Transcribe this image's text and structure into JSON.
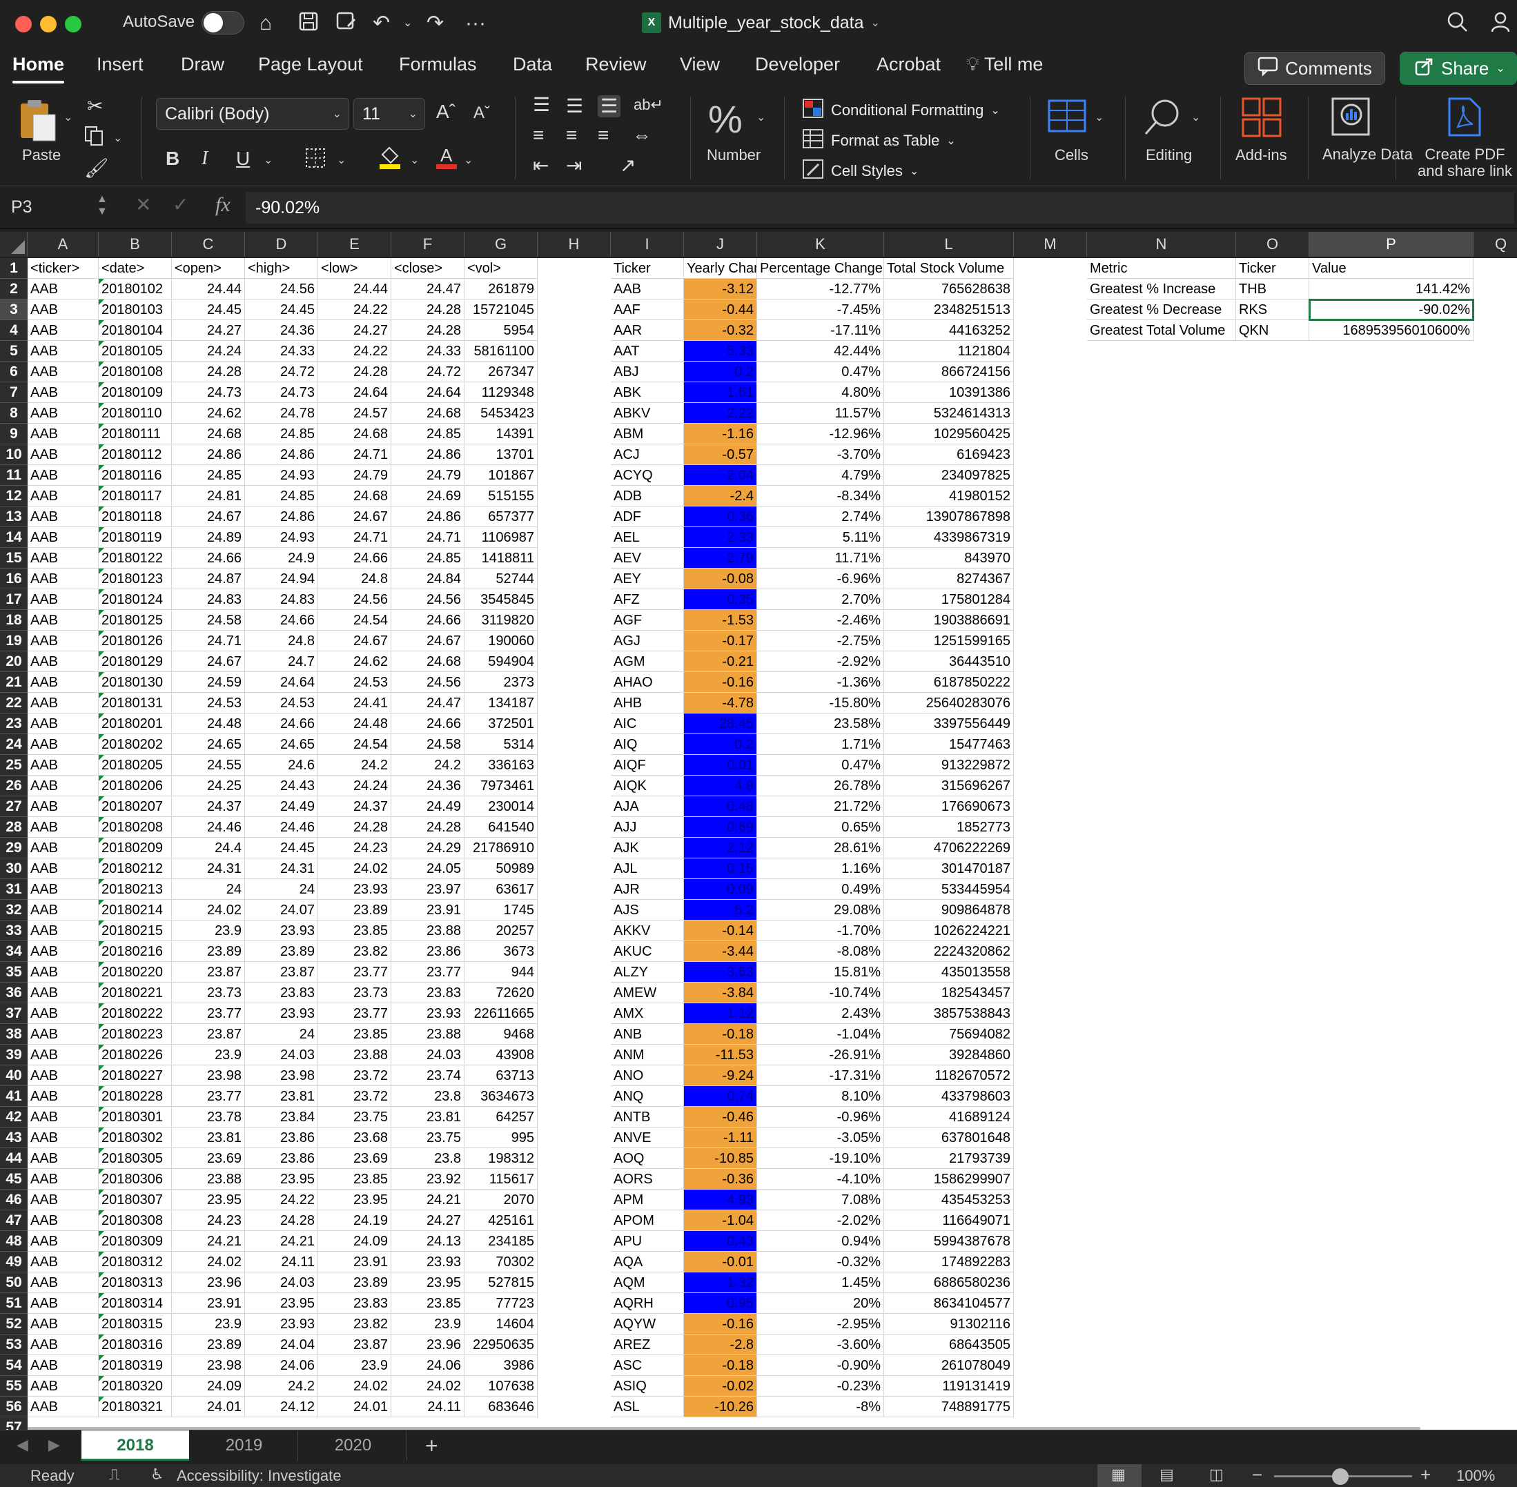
{
  "titlebar": {
    "autosave_label": "AutoSave",
    "doc_title": "Multiple_year_stock_data",
    "colors": {
      "close": "#ff5f57",
      "minimize": "#febc2e",
      "maximize": "#28c840"
    }
  },
  "tabs": [
    "Home",
    "Insert",
    "Draw",
    "Page Layout",
    "Formulas",
    "Data",
    "Review",
    "View",
    "Developer",
    "Acrobat"
  ],
  "tellme": "Tell me",
  "comments_label": "Comments",
  "share_label": "Share",
  "ribbon": {
    "paste": "Paste",
    "font_name": "Calibri (Body)",
    "font_size": "11",
    "bold": "B",
    "italic": "I",
    "underline": "U",
    "number": "Number",
    "conditional_formatting": "Conditional Formatting",
    "format_as_table": "Format as Table",
    "cell_styles": "Cell Styles",
    "cells": "Cells",
    "editing": "Editing",
    "addins": "Add-ins",
    "analyze_data": "Analyze Data",
    "create_pdf_1": "Create PDF",
    "create_pdf_2": "and share link"
  },
  "formula_bar": {
    "name_box": "P3",
    "fx": "fx",
    "value": "-90.02%"
  },
  "columns": [
    "A",
    "B",
    "C",
    "D",
    "E",
    "F",
    "G",
    "H",
    "I",
    "J",
    "K",
    "L",
    "M",
    "N",
    "O",
    "P",
    "Q"
  ],
  "selected_column": "P",
  "headers": {
    "A": "<ticker>",
    "B": "<date>",
    "C": "<open>",
    "D": "<high>",
    "E": "<low>",
    "F": "<close>",
    "G": "<vol>",
    "I": "Ticker",
    "J": "Yearly Change",
    "K": "Percentage Change",
    "L": "Total Stock Volume",
    "N": "Metric",
    "O": "Ticker",
    "P": "Value"
  },
  "summary": [
    {
      "metric": "Greatest % Increase",
      "ticker": "THB",
      "value": "141.42%"
    },
    {
      "metric": "Greatest % Decrease",
      "ticker": "RKS",
      "value": "-90.02%"
    },
    {
      "metric": "Greatest Total Volume",
      "ticker": "QKN",
      "value": "168953956010600%"
    }
  ],
  "raw_rows": [
    [
      "AAB",
      "20180102",
      "24.44",
      "24.56",
      "24.44",
      "24.47",
      "261879"
    ],
    [
      "AAB",
      "20180103",
      "24.45",
      "24.45",
      "24.22",
      "24.28",
      "15721045"
    ],
    [
      "AAB",
      "20180104",
      "24.27",
      "24.36",
      "24.27",
      "24.28",
      "5954"
    ],
    [
      "AAB",
      "20180105",
      "24.24",
      "24.33",
      "24.22",
      "24.33",
      "58161100"
    ],
    [
      "AAB",
      "20180108",
      "24.28",
      "24.72",
      "24.28",
      "24.72",
      "267347"
    ],
    [
      "AAB",
      "20180109",
      "24.73",
      "24.73",
      "24.64",
      "24.64",
      "1129348"
    ],
    [
      "AAB",
      "20180110",
      "24.62",
      "24.78",
      "24.57",
      "24.68",
      "5453423"
    ],
    [
      "AAB",
      "20180111",
      "24.68",
      "24.85",
      "24.68",
      "24.85",
      "14391"
    ],
    [
      "AAB",
      "20180112",
      "24.86",
      "24.86",
      "24.71",
      "24.86",
      "13701"
    ],
    [
      "AAB",
      "20180116",
      "24.85",
      "24.93",
      "24.79",
      "24.79",
      "101867"
    ],
    [
      "AAB",
      "20180117",
      "24.81",
      "24.85",
      "24.68",
      "24.69",
      "515155"
    ],
    [
      "AAB",
      "20180118",
      "24.67",
      "24.86",
      "24.67",
      "24.86",
      "657377"
    ],
    [
      "AAB",
      "20180119",
      "24.89",
      "24.93",
      "24.71",
      "24.71",
      "1106987"
    ],
    [
      "AAB",
      "20180122",
      "24.66",
      "24.9",
      "24.66",
      "24.85",
      "1418811"
    ],
    [
      "AAB",
      "20180123",
      "24.87",
      "24.94",
      "24.8",
      "24.84",
      "52744"
    ],
    [
      "AAB",
      "20180124",
      "24.83",
      "24.83",
      "24.56",
      "24.56",
      "3545845"
    ],
    [
      "AAB",
      "20180125",
      "24.58",
      "24.66",
      "24.54",
      "24.66",
      "3119820"
    ],
    [
      "AAB",
      "20180126",
      "24.71",
      "24.8",
      "24.67",
      "24.67",
      "190060"
    ],
    [
      "AAB",
      "20180129",
      "24.67",
      "24.7",
      "24.62",
      "24.68",
      "594904"
    ],
    [
      "AAB",
      "20180130",
      "24.59",
      "24.64",
      "24.53",
      "24.56",
      "2373"
    ],
    [
      "AAB",
      "20180131",
      "24.53",
      "24.53",
      "24.41",
      "24.47",
      "134187"
    ],
    [
      "AAB",
      "20180201",
      "24.48",
      "24.66",
      "24.48",
      "24.66",
      "372501"
    ],
    [
      "AAB",
      "20180202",
      "24.65",
      "24.65",
      "24.54",
      "24.58",
      "5314"
    ],
    [
      "AAB",
      "20180205",
      "24.55",
      "24.6",
      "24.2",
      "24.2",
      "336163"
    ],
    [
      "AAB",
      "20180206",
      "24.25",
      "24.43",
      "24.24",
      "24.36",
      "7973461"
    ],
    [
      "AAB",
      "20180207",
      "24.37",
      "24.49",
      "24.37",
      "24.49",
      "230014"
    ],
    [
      "AAB",
      "20180208",
      "24.46",
      "24.46",
      "24.28",
      "24.28",
      "641540"
    ],
    [
      "AAB",
      "20180209",
      "24.4",
      "24.45",
      "24.23",
      "24.29",
      "21786910"
    ],
    [
      "AAB",
      "20180212",
      "24.31",
      "24.31",
      "24.02",
      "24.05",
      "50989"
    ],
    [
      "AAB",
      "20180213",
      "24",
      "24",
      "23.93",
      "23.97",
      "63617"
    ],
    [
      "AAB",
      "20180214",
      "24.02",
      "24.07",
      "23.89",
      "23.91",
      "1745"
    ],
    [
      "AAB",
      "20180215",
      "23.9",
      "23.93",
      "23.85",
      "23.88",
      "20257"
    ],
    [
      "AAB",
      "20180216",
      "23.89",
      "23.89",
      "23.82",
      "23.86",
      "3673"
    ],
    [
      "AAB",
      "20180220",
      "23.87",
      "23.87",
      "23.77",
      "23.77",
      "944"
    ],
    [
      "AAB",
      "20180221",
      "23.73",
      "23.83",
      "23.73",
      "23.83",
      "72620"
    ],
    [
      "AAB",
      "20180222",
      "23.77",
      "23.93",
      "23.77",
      "23.93",
      "22611665"
    ],
    [
      "AAB",
      "20180223",
      "23.87",
      "24",
      "23.85",
      "23.88",
      "9468"
    ],
    [
      "AAB",
      "20180226",
      "23.9",
      "24.03",
      "23.88",
      "24.03",
      "43908"
    ],
    [
      "AAB",
      "20180227",
      "23.98",
      "23.98",
      "23.72",
      "23.74",
      "63713"
    ],
    [
      "AAB",
      "20180228",
      "23.77",
      "23.81",
      "23.72",
      "23.8",
      "3634673"
    ],
    [
      "AAB",
      "20180301",
      "23.78",
      "23.84",
      "23.75",
      "23.81",
      "64257"
    ],
    [
      "AAB",
      "20180302",
      "23.81",
      "23.86",
      "23.68",
      "23.75",
      "995"
    ],
    [
      "AAB",
      "20180305",
      "23.69",
      "23.86",
      "23.69",
      "23.8",
      "198312"
    ],
    [
      "AAB",
      "20180306",
      "23.88",
      "23.95",
      "23.85",
      "23.92",
      "115617"
    ],
    [
      "AAB",
      "20180307",
      "23.95",
      "24.22",
      "23.95",
      "24.21",
      "2070"
    ],
    [
      "AAB",
      "20180308",
      "24.23",
      "24.28",
      "24.19",
      "24.27",
      "425161"
    ],
    [
      "AAB",
      "20180309",
      "24.21",
      "24.21",
      "24.09",
      "24.13",
      "234185"
    ],
    [
      "AAB",
      "20180312",
      "24.02",
      "24.11",
      "23.91",
      "23.93",
      "70302"
    ],
    [
      "AAB",
      "20180313",
      "23.96",
      "24.03",
      "23.89",
      "23.95",
      "527815"
    ],
    [
      "AAB",
      "20180314",
      "23.91",
      "23.95",
      "23.83",
      "23.85",
      "77723"
    ],
    [
      "AAB",
      "20180315",
      "23.9",
      "23.93",
      "23.82",
      "23.9",
      "14604"
    ],
    [
      "AAB",
      "20180316",
      "23.89",
      "24.04",
      "23.87",
      "23.96",
      "22950635"
    ],
    [
      "AAB",
      "20180319",
      "23.98",
      "24.06",
      "23.9",
      "24.06",
      "3986"
    ],
    [
      "AAB",
      "20180320",
      "24.09",
      "24.2",
      "24.02",
      "24.02",
      "107638"
    ],
    [
      "AAB",
      "20180321",
      "24.01",
      "24.12",
      "24.01",
      "24.11",
      "683646"
    ]
  ],
  "analysis_rows": [
    [
      "AAB",
      "-3.12",
      "-12.77%",
      "765628638"
    ],
    [
      "AAF",
      "-0.44",
      "-7.45%",
      "2348251513"
    ],
    [
      "AAR",
      "-0.32",
      "-17.11%",
      "44163252"
    ],
    [
      "AAT",
      "5.33",
      "42.44%",
      "1121804"
    ],
    [
      "ABJ",
      "0.2",
      "0.47%",
      "866724156"
    ],
    [
      "ABK",
      "1.61",
      "4.80%",
      "10391386"
    ],
    [
      "ABKV",
      "2.22",
      "11.57%",
      "5324614313"
    ],
    [
      "ABM",
      "-1.16",
      "-12.96%",
      "1029560425"
    ],
    [
      "ACJ",
      "-0.57",
      "-3.70%",
      "6169423"
    ],
    [
      "ACYQ",
      "2.04",
      "4.79%",
      "234097825"
    ],
    [
      "ADB",
      "-2.4",
      "-8.34%",
      "41980152"
    ],
    [
      "ADF",
      "0.36",
      "2.74%",
      "13907867898"
    ],
    [
      "AEL",
      "2.33",
      "5.11%",
      "4339867319"
    ],
    [
      "AEV",
      "2.79",
      "11.71%",
      "843970"
    ],
    [
      "AEY",
      "-0.08",
      "-6.96%",
      "8274367"
    ],
    [
      "AFZ",
      "0.35",
      "2.70%",
      "175801284"
    ],
    [
      "AGF",
      "-1.53",
      "-2.46%",
      "1903886691"
    ],
    [
      "AGJ",
      "-0.17",
      "-2.75%",
      "1251599165"
    ],
    [
      "AGM",
      "-0.21",
      "-2.92%",
      "36443510"
    ],
    [
      "AHAO",
      "-0.16",
      "-1.36%",
      "6187850222"
    ],
    [
      "AHB",
      "-4.78",
      "-15.80%",
      "25640283076"
    ],
    [
      "AIC",
      "28.45",
      "23.58%",
      "3397556449"
    ],
    [
      "AIQ",
      "0.2",
      "1.71%",
      "15477463"
    ],
    [
      "AIQF",
      "0.01",
      "0.47%",
      "913229872"
    ],
    [
      "AIQK",
      "4.9",
      "26.78%",
      "315696267"
    ],
    [
      "AJA",
      "0.48",
      "21.72%",
      "176690673"
    ],
    [
      "AJJ",
      "0.69",
      "0.65%",
      "1852773"
    ],
    [
      "AJK",
      "2.12",
      "28.61%",
      "4706222269"
    ],
    [
      "AJL",
      "0.15",
      "1.16%",
      "301470187"
    ],
    [
      "AJR",
      "0.09",
      "0.49%",
      "533445954"
    ],
    [
      "AJS",
      "5.2",
      "29.08%",
      "909864878"
    ],
    [
      "AKKV",
      "-0.14",
      "-1.70%",
      "1026224221"
    ],
    [
      "AKUC",
      "-3.44",
      "-8.08%",
      "2224320862"
    ],
    [
      "ALZY",
      "3.63",
      "15.81%",
      "435013558"
    ],
    [
      "AMEW",
      "-3.84",
      "-10.74%",
      "182543457"
    ],
    [
      "AMX",
      "1.12",
      "2.43%",
      "3857538843"
    ],
    [
      "ANB",
      "-0.18",
      "-1.04%",
      "75694082"
    ],
    [
      "ANM",
      "-11.53",
      "-26.91%",
      "39284860"
    ],
    [
      "ANO",
      "-9.24",
      "-17.31%",
      "1182670572"
    ],
    [
      "ANQ",
      "0.74",
      "8.10%",
      "433798603"
    ],
    [
      "ANTB",
      "-0.46",
      "-0.96%",
      "41689124"
    ],
    [
      "ANVE",
      "-1.11",
      "-3.05%",
      "637801648"
    ],
    [
      "AOQ",
      "-10.85",
      "-19.10%",
      "21793739"
    ],
    [
      "AORS",
      "-0.36",
      "-4.10%",
      "1586299907"
    ],
    [
      "APM",
      "4.93",
      "7.08%",
      "435453253"
    ],
    [
      "APOM",
      "-1.04",
      "-2.02%",
      "116649071"
    ],
    [
      "APU",
      "0.43",
      "0.94%",
      "5994387678"
    ],
    [
      "AQA",
      "-0.01",
      "-0.32%",
      "174892283"
    ],
    [
      "AQM",
      "1.32",
      "1.45%",
      "6886580236"
    ],
    [
      "AQRH",
      "0.95",
      "20%",
      "8634104577"
    ],
    [
      "AQYW",
      "-0.16",
      "-2.95%",
      "91302116"
    ],
    [
      "AREZ",
      "-2.8",
      "-3.60%",
      "68643505"
    ],
    [
      "ASC",
      "-0.18",
      "-0.90%",
      "261078049"
    ],
    [
      "ASIQ",
      "-0.02",
      "-0.23%",
      "119131419"
    ],
    [
      "ASL",
      "-10.26",
      "-8%",
      "748891775"
    ]
  ],
  "sheet_tabs": [
    "2018",
    "2019",
    "2020"
  ],
  "active_sheet": "2018",
  "status": {
    "ready": "Ready",
    "accessibility": "Accessibility: Investigate",
    "zoom": "100%"
  },
  "fill_colors": {
    "negative": "#f1a33b",
    "positive": "#0000ff"
  }
}
